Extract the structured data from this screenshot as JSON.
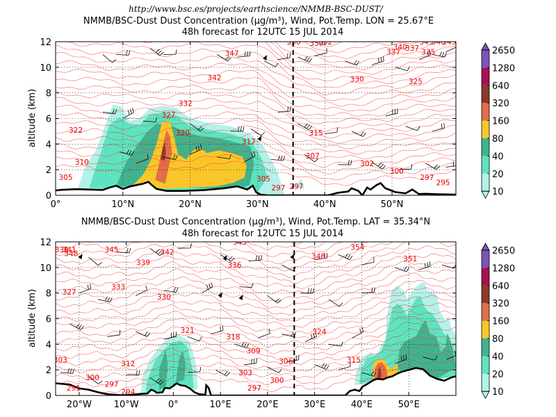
{
  "source_url": "http://www.bsc.es/projects/earthscience/NMMB-BSC-DUST/",
  "colors": {
    "dust_levels": [
      "#b2f2ea",
      "#5ee3c0",
      "#3fb38e",
      "#f9c62a",
      "#e06f47",
      "#8b3a28",
      "#a8104f",
      "#7b54b7"
    ],
    "theta_contour": "#ff3a3a",
    "terrain": "#000000",
    "section_marker": "#000000"
  },
  "colorbar": {
    "levels": [
      "10",
      "20",
      "40",
      "80",
      "160",
      "320",
      "640",
      "1280",
      "2650"
    ]
  },
  "chart_data": [
    {
      "type": "area",
      "title_line1": "NMMB/BSC-Dust Dust Concentration (µg/m³), Wind, Pot.Temp. LON = 25.67°E",
      "title_line2": "48h forecast for 12UTC 15 JUL 2014",
      "ylabel": "altitude (km)",
      "xlim": [
        0,
        59.5
      ],
      "ylim": [
        0,
        12
      ],
      "x_ticks": [
        0,
        10,
        20,
        30,
        40,
        50
      ],
      "x_tick_labels": [
        "0°",
        "10°N",
        "20°N",
        "30°N",
        "40°N",
        "50°N"
      ],
      "y_ticks": [
        0,
        2,
        4,
        6,
        8,
        10,
        12
      ],
      "y_tick_labels": [
        "0",
        "2",
        "4",
        "6",
        "8",
        "10",
        "12"
      ],
      "section_marker_x": 35.3,
      "grid": true,
      "contour_labels": [
        {
          "x": 1.5,
          "y": 1.4,
          "text": "305"
        },
        {
          "x": 3.9,
          "y": 2.6,
          "text": "310"
        },
        {
          "x": 3.0,
          "y": 5.1,
          "text": "322"
        },
        {
          "x": 16.8,
          "y": 6.3,
          "text": "327"
        },
        {
          "x": 19.3,
          "y": 7.2,
          "text": "332"
        },
        {
          "x": 18.9,
          "y": 4.9,
          "text": "320"
        },
        {
          "x": 28.7,
          "y": 4.2,
          "text": "317"
        },
        {
          "x": 23.6,
          "y": 9.2,
          "text": "342"
        },
        {
          "x": 26.2,
          "y": 11.1,
          "text": "347"
        },
        {
          "x": 30.9,
          "y": 1.3,
          "text": "305"
        },
        {
          "x": 33.1,
          "y": 0.6,
          "text": "297"
        },
        {
          "x": 35.8,
          "y": 0.7,
          "text": "297"
        },
        {
          "x": 35.4,
          "y": 12.0,
          "text": "350"
        },
        {
          "x": 38.8,
          "y": 11.9,
          "text": "350"
        },
        {
          "x": 40.1,
          "y": 12.0,
          "text": "352"
        },
        {
          "x": 38.7,
          "y": 4.9,
          "text": "315"
        },
        {
          "x": 38.2,
          "y": 3.1,
          "text": "307"
        },
        {
          "x": 44.8,
          "y": 9.1,
          "text": "330"
        },
        {
          "x": 46.3,
          "y": 2.5,
          "text": "302"
        },
        {
          "x": 50.7,
          "y": 1.9,
          "text": "300"
        },
        {
          "x": 53.0,
          "y": 11.5,
          "text": "337"
        },
        {
          "x": 50.2,
          "y": 11.2,
          "text": "337"
        },
        {
          "x": 51.2,
          "y": 11.6,
          "text": "340"
        },
        {
          "x": 55.1,
          "y": 12.0,
          "text": "345"
        },
        {
          "x": 55.4,
          "y": 11.2,
          "text": "335"
        },
        {
          "x": 56.9,
          "y": 12.0,
          "text": "340"
        },
        {
          "x": 58.5,
          "y": 12.0,
          "text": "345"
        },
        {
          "x": 53.5,
          "y": 8.9,
          "text": "325"
        },
        {
          "x": 55.2,
          "y": 1.4,
          "text": "297"
        },
        {
          "x": 57.6,
          "y": 1.0,
          "text": "295"
        }
      ]
    },
    {
      "type": "area",
      "title_line1": "NMMB/BSC-Dust Dust Concentration (µg/m³), Wind, Pot.Temp. LAT = 35.34°N",
      "title_line2": "48h forecast for 12UTC 15 JUL 2014",
      "ylabel": "altitude (km)",
      "xlim": [
        -25,
        60
      ],
      "ylim": [
        0,
        12
      ],
      "x_ticks": [
        -20,
        -10,
        0,
        10,
        20,
        30,
        40,
        50
      ],
      "x_tick_labels": [
        "20°W",
        "10°W",
        "0°",
        "10°E",
        "20°E",
        "30°E",
        "40°E",
        "50°E"
      ],
      "y_ticks": [
        0,
        2,
        4,
        6,
        8,
        10,
        12
      ],
      "y_tick_labels": [
        "0",
        "2",
        "4",
        "6",
        "8",
        "10",
        "12"
      ],
      "section_marker_x": 25.67,
      "grid": true,
      "contour_labels": [
        {
          "x": -23.7,
          "y": 11.4,
          "text": "338"
        },
        {
          "x": -22.1,
          "y": 11.4,
          "text": "341"
        },
        {
          "x": -21.7,
          "y": 11.1,
          "text": "348"
        },
        {
          "x": -13.1,
          "y": 11.4,
          "text": "345"
        },
        {
          "x": -1.3,
          "y": 11.2,
          "text": "342"
        },
        {
          "x": -6.4,
          "y": 10.4,
          "text": "339"
        },
        {
          "x": -11.7,
          "y": 8.5,
          "text": "333"
        },
        {
          "x": -2.0,
          "y": 7.7,
          "text": "330"
        },
        {
          "x": -22.1,
          "y": 8.1,
          "text": "327"
        },
        {
          "x": 13.0,
          "y": 10.2,
          "text": "336"
        },
        {
          "x": 14.1,
          "y": 12.0,
          "text": "345"
        },
        {
          "x": 3.0,
          "y": 5.1,
          "text": "321"
        },
        {
          "x": 12.7,
          "y": 4.6,
          "text": "318"
        },
        {
          "x": 17.0,
          "y": 3.5,
          "text": "309"
        },
        {
          "x": -9.6,
          "y": 2.5,
          "text": "312"
        },
        {
          "x": -24.0,
          "y": 2.8,
          "text": "303"
        },
        {
          "x": -17.2,
          "y": 1.4,
          "text": "300"
        },
        {
          "x": -13.1,
          "y": 0.9,
          "text": "297"
        },
        {
          "x": -21.2,
          "y": 0.6,
          "text": "291"
        },
        {
          "x": -9.6,
          "y": 0.3,
          "text": "294"
        },
        {
          "x": 15.3,
          "y": 1.8,
          "text": "303"
        },
        {
          "x": 17.2,
          "y": 0.6,
          "text": "297"
        },
        {
          "x": 22.0,
          "y": 1.2,
          "text": "300"
        },
        {
          "x": 23.9,
          "y": 2.7,
          "text": "306"
        },
        {
          "x": 31.0,
          "y": 5.0,
          "text": "324"
        },
        {
          "x": 39.1,
          "y": 11.6,
          "text": "354"
        },
        {
          "x": 30.8,
          "y": 10.9,
          "text": "348"
        },
        {
          "x": 50.3,
          "y": 10.7,
          "text": "351"
        },
        {
          "x": 38.3,
          "y": 2.8,
          "text": "315"
        }
      ]
    }
  ]
}
